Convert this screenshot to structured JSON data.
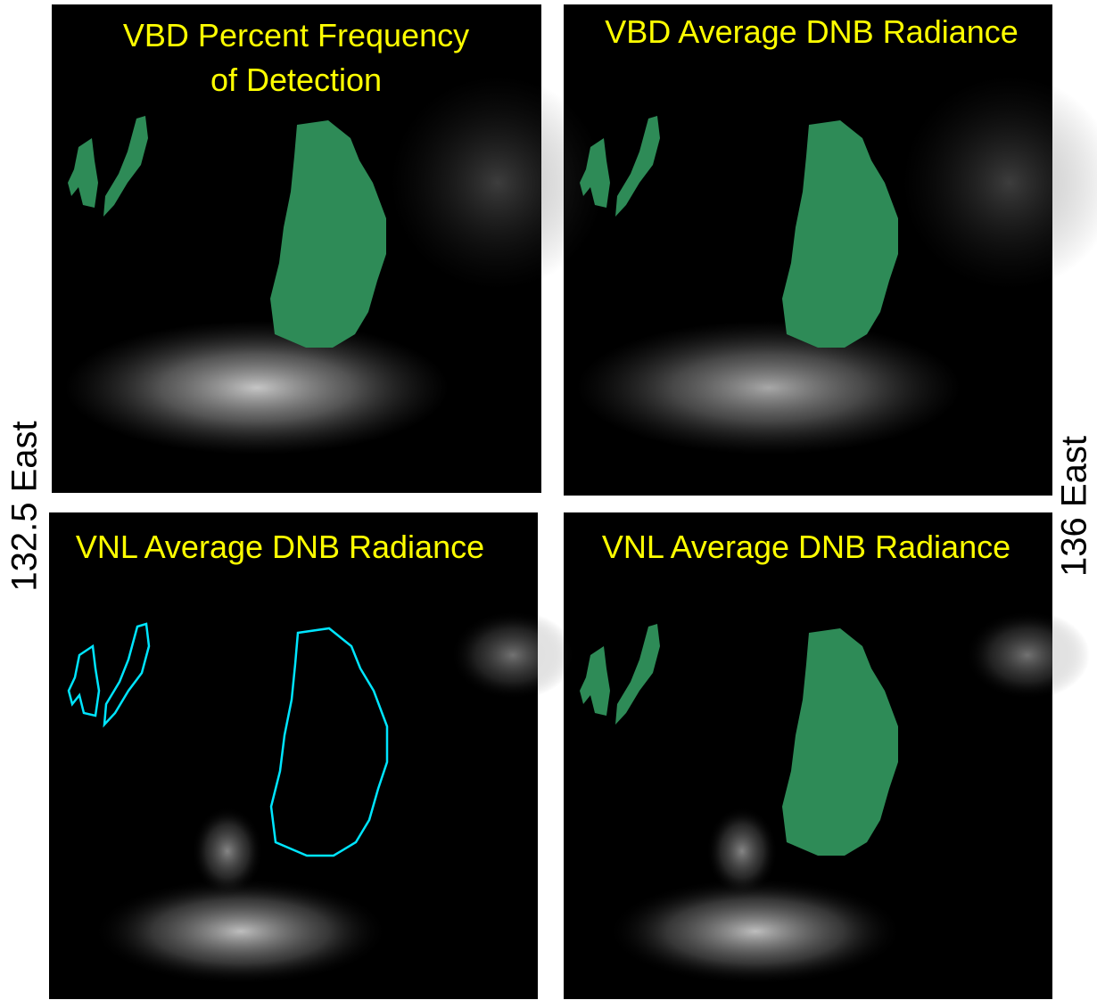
{
  "panels": [
    {
      "title_lines": [
        "VBD  Percent Frequency",
        "of Detection"
      ]
    },
    {
      "title_lines": [
        "VBD  Average DNB Radiance"
      ]
    },
    {
      "title_lines": [
        "VNL Average DNB Radiance"
      ]
    },
    {
      "title_lines": [
        "VNL Average DNB Radiance"
      ]
    }
  ],
  "side_labels": {
    "left": "132.5 East",
    "right": "136 East"
  }
}
